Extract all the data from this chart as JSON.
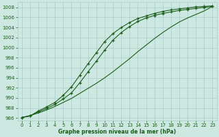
{
  "x": [
    0,
    1,
    2,
    3,
    4,
    5,
    6,
    7,
    8,
    9,
    10,
    11,
    12,
    13,
    14,
    15,
    16,
    17,
    18,
    19,
    20,
    21,
    22,
    23
  ],
  "line1": [
    986.1,
    986.4,
    987.4,
    988.2,
    989.1,
    990.5,
    992.2,
    994.5,
    996.8,
    999.0,
    1001.2,
    1002.8,
    1004.0,
    1005.0,
    1005.8,
    1006.3,
    1006.8,
    1007.2,
    1007.5,
    1007.7,
    1007.9,
    1008.1,
    1008.2,
    1008.3
  ],
  "line2": [
    986.1,
    986.4,
    987.2,
    987.9,
    988.7,
    989.8,
    991.0,
    993.0,
    995.2,
    997.3,
    999.5,
    1001.5,
    1003.0,
    1004.2,
    1005.2,
    1005.9,
    1006.4,
    1006.8,
    1007.1,
    1007.4,
    1007.6,
    1007.8,
    1008.0,
    1008.2
  ],
  "line3": [
    986.1,
    986.5,
    987.0,
    987.6,
    988.3,
    989.1,
    989.9,
    990.9,
    991.9,
    992.9,
    994.0,
    995.2,
    996.5,
    997.8,
    999.2,
    1000.5,
    1001.8,
    1003.0,
    1004.1,
    1005.1,
    1005.9,
    1006.6,
    1007.3,
    1008.2
  ],
  "bg_color": "#cce8e0",
  "grid_color": "#aacccc",
  "line_color": "#1a5c1a",
  "xlabel": "Graphe pression niveau de la mer (hPa)",
  "ylim": [
    985.5,
    1009
  ],
  "yticks": [
    986,
    988,
    990,
    992,
    994,
    996,
    998,
    1000,
    1002,
    1004,
    1006,
    1008
  ],
  "xticks": [
    0,
    1,
    2,
    3,
    4,
    5,
    6,
    7,
    8,
    9,
    10,
    11,
    12,
    13,
    14,
    15,
    16,
    17,
    18,
    19,
    20,
    21,
    22,
    23
  ]
}
